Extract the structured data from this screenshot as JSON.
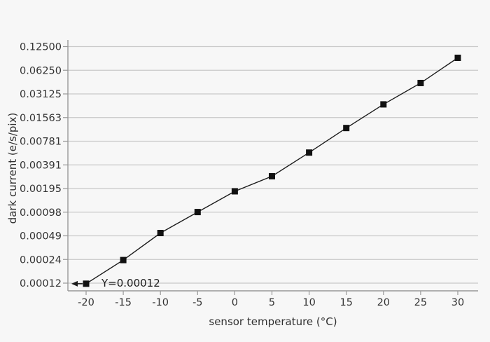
{
  "chart_data": {
    "type": "line",
    "title": "",
    "xlabel": "sensor temperature (°C)",
    "ylabel": "dark current (e/s/pix)",
    "x": [
      -20,
      -15,
      -10,
      -5,
      0,
      5,
      10,
      15,
      20,
      25,
      30
    ],
    "series": [
      {
        "name": "dark current",
        "values": [
          0.00012,
          0.00024,
          0.00053,
          0.00098,
          0.0018,
          0.0028,
          0.0056,
          0.0115,
          0.023,
          0.043,
          0.09
        ]
      }
    ],
    "x_tick_labels": [
      "-20",
      "-15",
      "-10",
      "-5",
      "0",
      "5",
      "10",
      "15",
      "20",
      "25",
      "30"
    ],
    "y_scale": "log2",
    "y_tick_labels": [
      "0.12500",
      "0.06250",
      "0.03125",
      "0.01563",
      "0.00781",
      "0.00391",
      "0.00195",
      "0.00098",
      "0.00049",
      "0.00024",
      "0.00012"
    ],
    "y_tick_values": [
      0.125,
      0.0625,
      0.03125,
      0.015625,
      0.0078125,
      0.00390625,
      0.001953125,
      0.0009765625,
      0.00048828125,
      0.000244140625,
      0.00012
    ],
    "ylim_top_value": 0.125,
    "grid": true,
    "legend": false,
    "marker": "filled-square",
    "annotation": {
      "label": "Y=0.00012",
      "at_x": -20,
      "at_value": 0.00012,
      "arrow_direction": "left"
    },
    "colors": {
      "background": "#f7f7f7",
      "gridline": "#c9c9c9",
      "axis": "#999999",
      "data_line": "#1c1c1c",
      "marker": "#111111",
      "text": "#333333"
    }
  }
}
